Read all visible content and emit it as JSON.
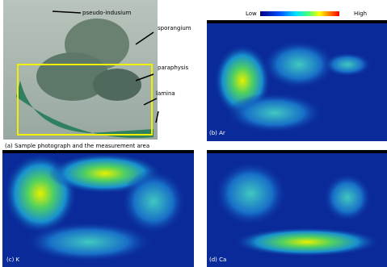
{
  "colorbar": {
    "low": "Low",
    "high": "High"
  },
  "annotations": [
    "pseudo-indusium",
    "sporangium",
    "paraphysis",
    "lamina"
  ],
  "panels": [
    {
      "caption": "(a) Sample photograph and the measurement area"
    },
    {
      "caption": "(b) Ar"
    },
    {
      "caption": "(c) K"
    },
    {
      "caption": "(d) Ca"
    }
  ]
}
